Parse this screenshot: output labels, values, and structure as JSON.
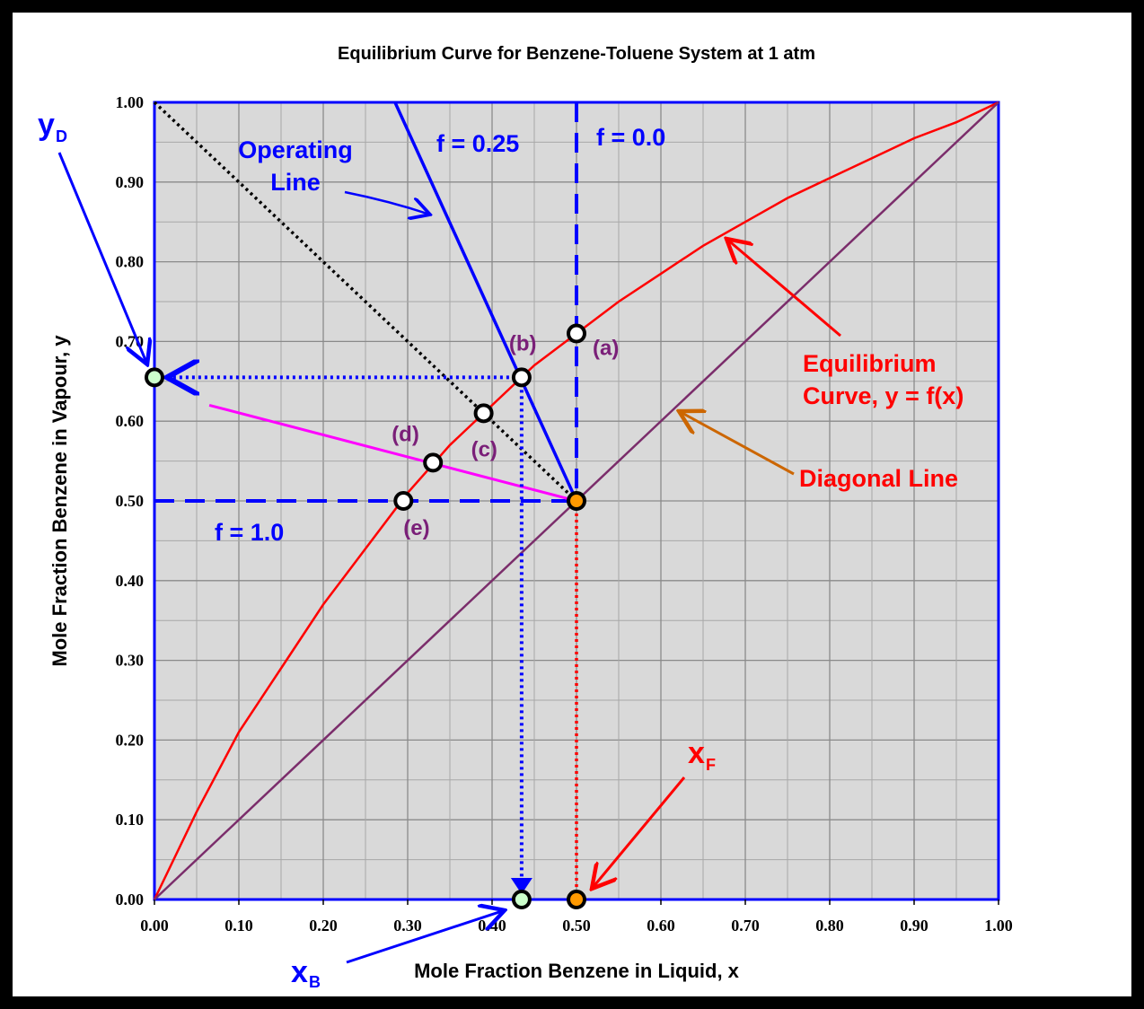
{
  "chart_data": {
    "type": "line",
    "title": "Equilibrium Curve for Benzene-Toluene System at 1 atm",
    "xlabel": "Mole Fraction Benzene in Liquid, x",
    "ylabel": "Mole Fraction Benzene in Vapour, y",
    "xlim": [
      0,
      1
    ],
    "ylim": [
      0,
      1
    ],
    "x_ticks": [
      "0.00",
      "0.10",
      "0.20",
      "0.30",
      "0.40",
      "0.50",
      "0.60",
      "0.70",
      "0.80",
      "0.90",
      "1.00"
    ],
    "y_ticks": [
      "0.00",
      "0.10",
      "0.20",
      "0.30",
      "0.40",
      "0.50",
      "0.60",
      "0.70",
      "0.80",
      "0.90",
      "1.00"
    ],
    "grid": true,
    "series": [
      {
        "name": "Equilibrium Curve, y = f(x)",
        "color": "#ff0000",
        "x": [
          0,
          0.05,
          0.1,
          0.15,
          0.2,
          0.25,
          0.3,
          0.35,
          0.4,
          0.45,
          0.5,
          0.55,
          0.6,
          0.65,
          0.7,
          0.75,
          0.8,
          0.85,
          0.9,
          0.95,
          1.0
        ],
        "y": [
          0,
          0.11,
          0.21,
          0.29,
          0.37,
          0.44,
          0.51,
          0.57,
          0.62,
          0.67,
          0.71,
          0.75,
          0.785,
          0.82,
          0.85,
          0.88,
          0.905,
          0.93,
          0.955,
          0.975,
          1.0
        ]
      },
      {
        "name": "Diagonal Line",
        "color": "#7b2d6b",
        "x": [
          0,
          1
        ],
        "y": [
          0,
          1
        ]
      },
      {
        "name": "Operating Line",
        "color": "#0000ff",
        "x": [
          0.285,
          0.5
        ],
        "y": [
          1.0,
          0.5
        ]
      },
      {
        "name": "f = 0.0",
        "color": "#0000ff",
        "x": [
          0.5,
          0.5
        ],
        "y": [
          1.0,
          0.5
        ]
      },
      {
        "name": "f = 1.0",
        "color": "#0000ff",
        "x": [
          0,
          0.5
        ],
        "y": [
          0.5,
          0.5
        ]
      },
      {
        "color": "#000000",
        "x": [
          0,
          0.5
        ],
        "y": [
          1.0,
          0.5
        ]
      },
      {
        "color": "#ff00ff",
        "x": [
          0.065,
          0.5
        ],
        "y": [
          0.62,
          0.5
        ]
      }
    ],
    "points": [
      {
        "label": "(a)",
        "x": 0.5,
        "y": 0.71
      },
      {
        "label": "(b)",
        "x": 0.435,
        "y": 0.655
      },
      {
        "label": "(c)",
        "x": 0.39,
        "y": 0.61
      },
      {
        "label": "(d)",
        "x": 0.33,
        "y": 0.548
      },
      {
        "label": "(e)",
        "x": 0.295,
        "y": 0.5
      }
    ],
    "y_D": 0.655,
    "x_B": 0.435,
    "x_F": 0.5,
    "annotations": {
      "operating_line": [
        "Operating",
        "Line"
      ],
      "f025": "f = 0.25",
      "f00": "f = 0.0",
      "f10": "f = 1.0",
      "equilibrium": [
        "Equilibrium",
        "Curve, y = f(x)"
      ],
      "diagonal": "Diagonal Line",
      "yD": "y",
      "yD_sub": "D",
      "xB": "x",
      "xB_sub": "B",
      "xF": "x",
      "xF_sub": "F"
    }
  }
}
